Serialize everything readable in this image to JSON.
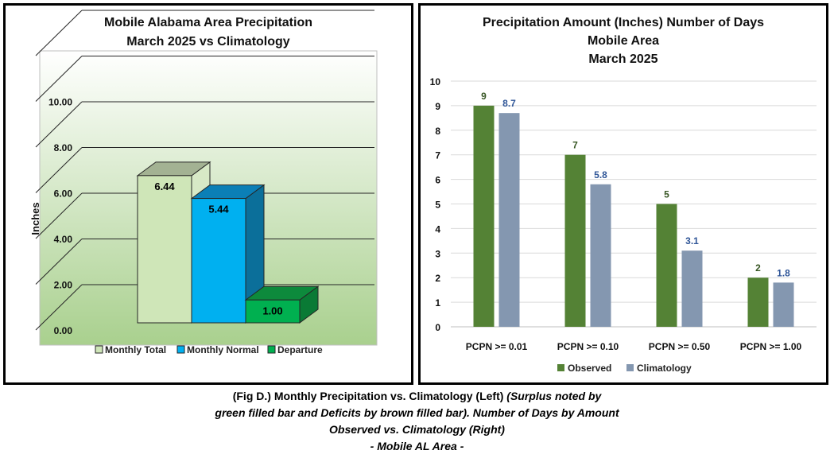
{
  "chart_data": [
    {
      "type": "bar",
      "title": "Mobile Alabama Area Precipitation",
      "subtitle": "March 2025 vs Climatology",
      "ylabel": "Inches",
      "ylim": [
        0,
        12
      ],
      "yticks": [
        "0.00",
        "2.00",
        "4.00",
        "6.00",
        "8.00",
        "10.00"
      ],
      "categories": [
        "Monthly Total",
        "Monthly Normal",
        "Departure"
      ],
      "values": [
        6.44,
        5.44,
        1.0
      ],
      "value_labels": [
        "6.44",
        "5.44",
        "1.00"
      ],
      "legend": [
        "Monthly Total",
        "Monthly Normal",
        "Departure"
      ],
      "legend_position": "bottom",
      "colors": {
        "front": [
          "#cfe6b8",
          "#00b0f0",
          "#00b050"
        ],
        "top": [
          "#a3b293",
          "#0b7fb6",
          "#0d8a3c"
        ],
        "side": [
          "#d7e9c6",
          "#0b6f9a",
          "#0a7a35"
        ],
        "plot_bg_top": "#ffffff",
        "plot_bg_bottom": "#a9d08e"
      },
      "grid": true,
      "three_d": true
    },
    {
      "type": "bar",
      "title": "Precipitation Amount (Inches) Number of Days",
      "subtitle": "Mobile Area",
      "subtitle2": "March 2025",
      "ylim": [
        0,
        10
      ],
      "yticks": [
        "0",
        "1",
        "2",
        "3",
        "4",
        "5",
        "6",
        "7",
        "8",
        "9",
        "10"
      ],
      "categories": [
        "PCPN >= 0.01",
        "PCPN >= 0.10",
        "PCPN >= 0.50",
        "PCPN >= 1.00"
      ],
      "series": [
        {
          "name": "Observed",
          "values": [
            9,
            7,
            5,
            2
          ],
          "labels": [
            "9",
            "7",
            "5",
            "2"
          ],
          "color": "#548235"
        },
        {
          "name": "Climatology",
          "values": [
            8.7,
            5.8,
            3.1,
            1.8
          ],
          "labels": [
            "8.7",
            "5.8",
            "3.1",
            "1.8"
          ],
          "color": "#8497b0"
        }
      ],
      "label_colors": {
        "Observed": "#375623",
        "Climatology": "#2f5597"
      },
      "legend_position": "bottom",
      "grid": true
    }
  ],
  "caption": {
    "line1_plain": "(Fig D.) Monthly Precipitation vs. Climatology (Left) ",
    "line1_italic": "(Surplus noted by",
    "line2": "green filled bar and Deficits by brown filled bar). Number of Days by Amount",
    "line3": "Observed vs. Climatology (Right)",
    "line4": "- Mobile AL Area -"
  }
}
